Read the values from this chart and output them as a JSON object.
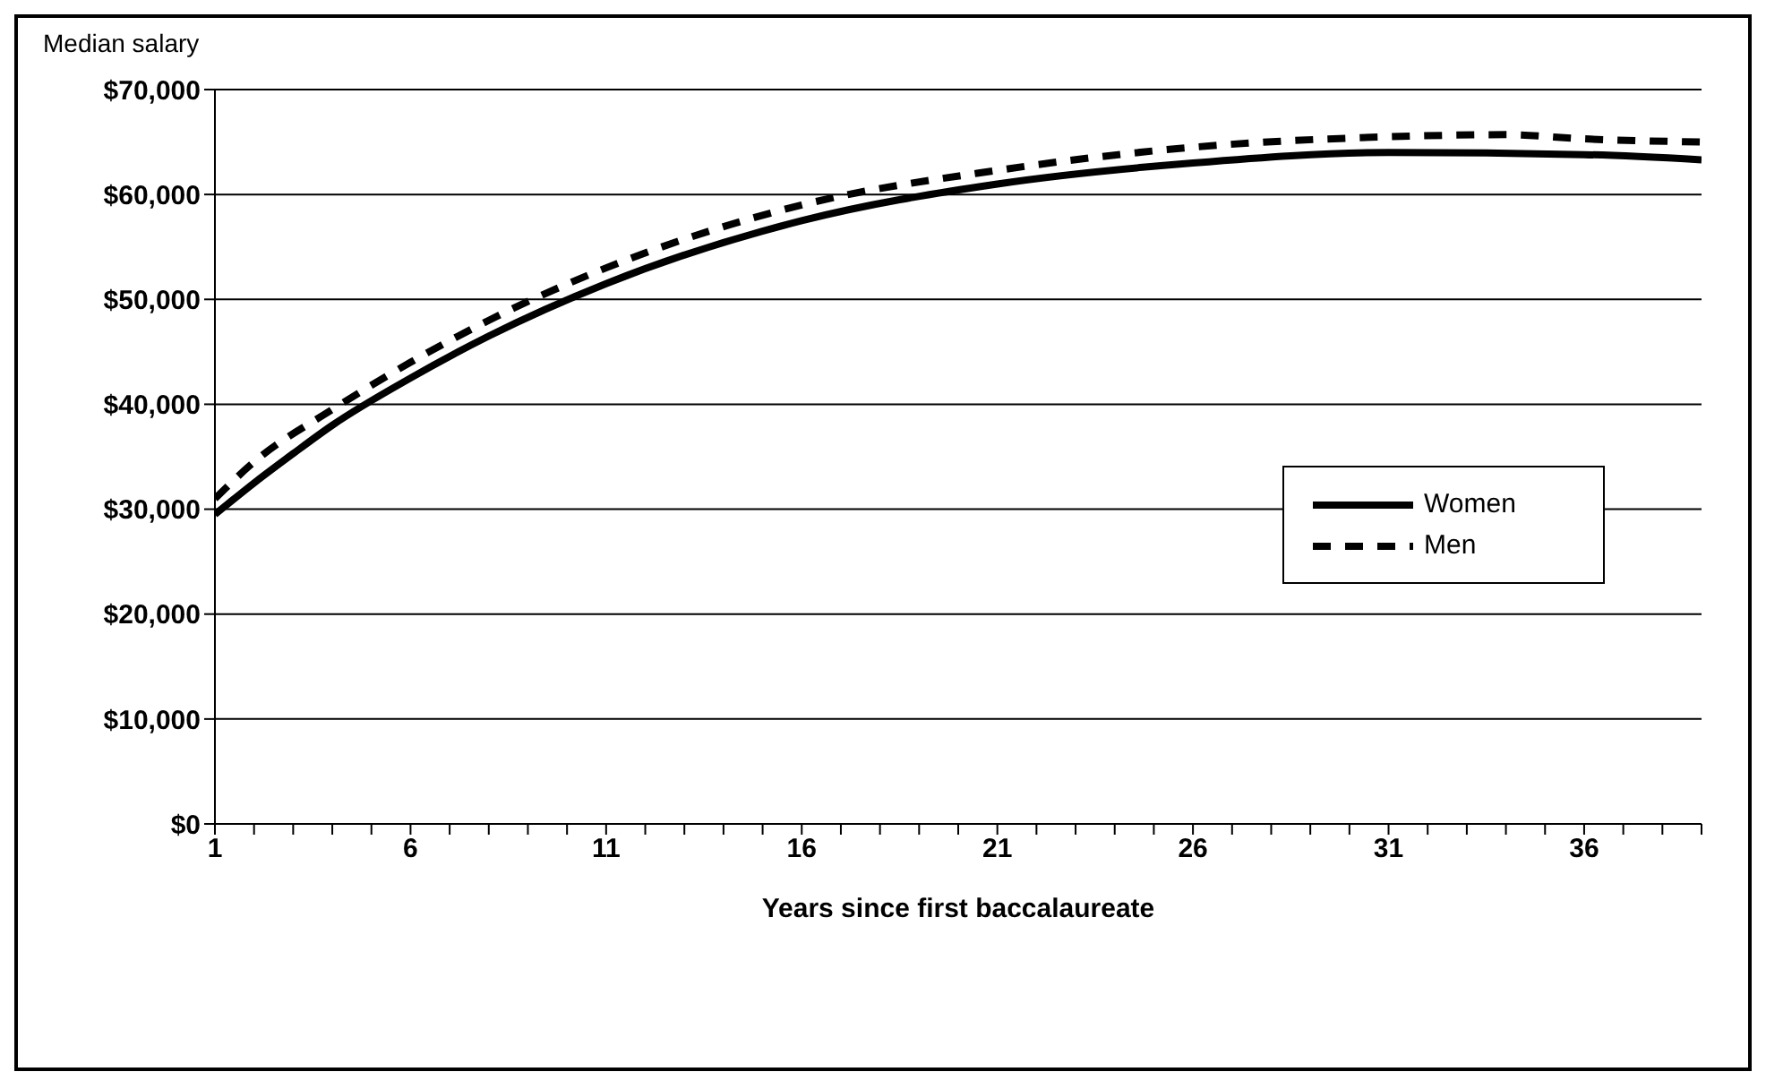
{
  "chart_data": {
    "type": "line",
    "ylabel": "Median salary",
    "xlabel": "Years since first baccalaureate",
    "xlim": [
      1,
      39
    ],
    "xticks": [
      1,
      {
        "value": 2,
        "label": null
      },
      {
        "value": 3,
        "label": null
      },
      {
        "value": 4,
        "label": null
      },
      {
        "value": 5,
        "label": null
      },
      6,
      {
        "value": 7,
        "label": null
      },
      {
        "value": 8,
        "label": null
      },
      {
        "value": 9,
        "label": null
      },
      {
        "value": 10,
        "label": null
      },
      11,
      {
        "value": 12,
        "label": null
      },
      {
        "value": 13,
        "label": null
      },
      {
        "value": 14,
        "label": null
      },
      {
        "value": 15,
        "label": null
      },
      16,
      {
        "value": 17,
        "label": null
      },
      {
        "value": 18,
        "label": null
      },
      {
        "value": 19,
        "label": null
      },
      {
        "value": 20,
        "label": null
      },
      21,
      {
        "value": 22,
        "label": null
      },
      {
        "value": 23,
        "label": null
      },
      {
        "value": 24,
        "label": null
      },
      {
        "value": 25,
        "label": null
      },
      26,
      {
        "value": 27,
        "label": null
      },
      {
        "value": 28,
        "label": null
      },
      {
        "value": 29,
        "label": null
      },
      {
        "value": 30,
        "label": null
      },
      31,
      {
        "value": 32,
        "label": null
      },
      {
        "value": 33,
        "label": null
      },
      {
        "value": 34,
        "label": null
      },
      {
        "value": 35,
        "label": null
      },
      36,
      {
        "value": 37,
        "label": null
      },
      {
        "value": 38,
        "label": null
      },
      {
        "value": 39,
        "label": null
      }
    ],
    "ylim": [
      0,
      70000
    ],
    "yticks": [
      {
        "value": 0,
        "label": "$0"
      },
      {
        "value": 10000,
        "label": "$10,000"
      },
      {
        "value": 20000,
        "label": "$20,000"
      },
      {
        "value": 30000,
        "label": "$30,000"
      },
      {
        "value": 40000,
        "label": "$40,000"
      },
      {
        "value": 50000,
        "label": "$50,000"
      },
      {
        "value": 60000,
        "label": "$60,000"
      },
      {
        "value": 70000,
        "label": "$70,000"
      }
    ],
    "grid": "y",
    "legend": "right",
    "marker": "none",
    "series": [
      {
        "name": "Women",
        "color": "#000000",
        "line_style": "solid",
        "x": [
          1,
          2,
          3,
          4,
          6,
          8,
          11,
          16,
          21,
          26,
          31,
          36,
          39
        ],
        "values": [
          29500,
          32500,
          35300,
          38000,
          42500,
          46500,
          51500,
          57500,
          61000,
          63000,
          64000,
          63800,
          63300
        ]
      },
      {
        "name": "Men",
        "color": "#000000",
        "line_style": "dashed",
        "x": [
          1,
          2,
          4,
          6,
          8,
          11,
          16,
          21,
          26,
          31,
          34,
          36,
          39
        ],
        "values": [
          31000,
          34500,
          39500,
          44000,
          48000,
          53000,
          59000,
          62300,
          64500,
          65500,
          65700,
          65300,
          65000
        ]
      }
    ]
  }
}
